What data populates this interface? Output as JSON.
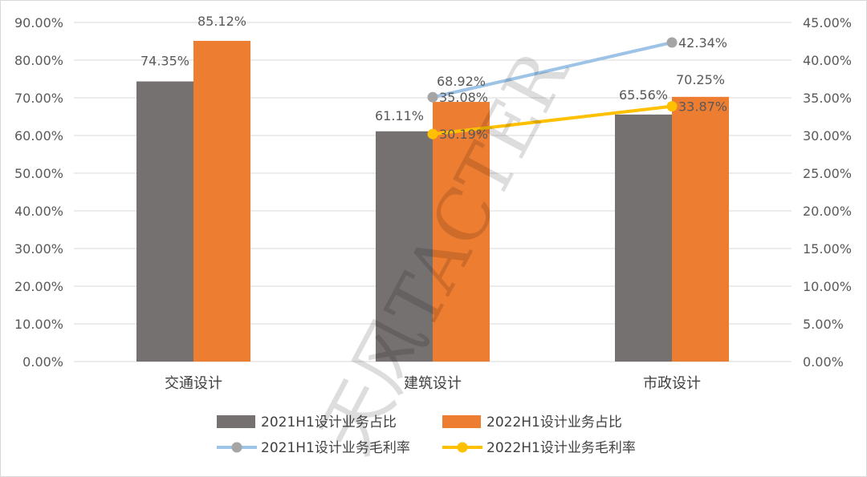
{
  "chart_data": {
    "type": "bar",
    "categories": [
      "交通设计",
      "建筑设计",
      "市政设计"
    ],
    "y_left": {
      "ylim": [
        0,
        90
      ],
      "ticks": [
        "0.00%",
        "10.00%",
        "20.00%",
        "30.00%",
        "40.00%",
        "50.00%",
        "60.00%",
        "70.00%",
        "80.00%",
        "90.00%"
      ]
    },
    "y_right": {
      "ylim": [
        0,
        45
      ],
      "ticks": [
        "0.00%",
        "5.00%",
        "10.00%",
        "15.00%",
        "20.00%",
        "25.00%",
        "30.00%",
        "35.00%",
        "40.00%",
        "45.00%"
      ]
    },
    "series": [
      {
        "name": "2021H1设计业务占比",
        "kind": "bar",
        "axis": "left",
        "color": "#767171",
        "values": [
          74.35,
          61.11,
          65.56
        ],
        "labels": [
          "74.35%",
          "61.11%",
          "65.56%"
        ]
      },
      {
        "name": "2022H1设计业务占比",
        "kind": "bar",
        "axis": "left",
        "color": "#ed7d31",
        "values": [
          85.12,
          68.92,
          70.25
        ],
        "labels": [
          "85.12%",
          "68.92%",
          "70.25%"
        ]
      },
      {
        "name": "2021H1设计业务毛利率",
        "kind": "line",
        "axis": "right",
        "color": "#9dc3e6",
        "marker_color": "#a5a5a5",
        "values": [
          null,
          35.08,
          42.34
        ],
        "labels": [
          null,
          "35.08%",
          "42.34%"
        ]
      },
      {
        "name": "2022H1设计业务毛利率",
        "kind": "line",
        "axis": "right",
        "color": "#ffc000",
        "marker_color": "#ffc000",
        "values": [
          null,
          30.19,
          33.87
        ],
        "labels": [
          null,
          "30.19%",
          "33.87%"
        ]
      }
    ],
    "legend_position": "bottom",
    "grid": true
  },
  "watermark": "天风TACTER"
}
